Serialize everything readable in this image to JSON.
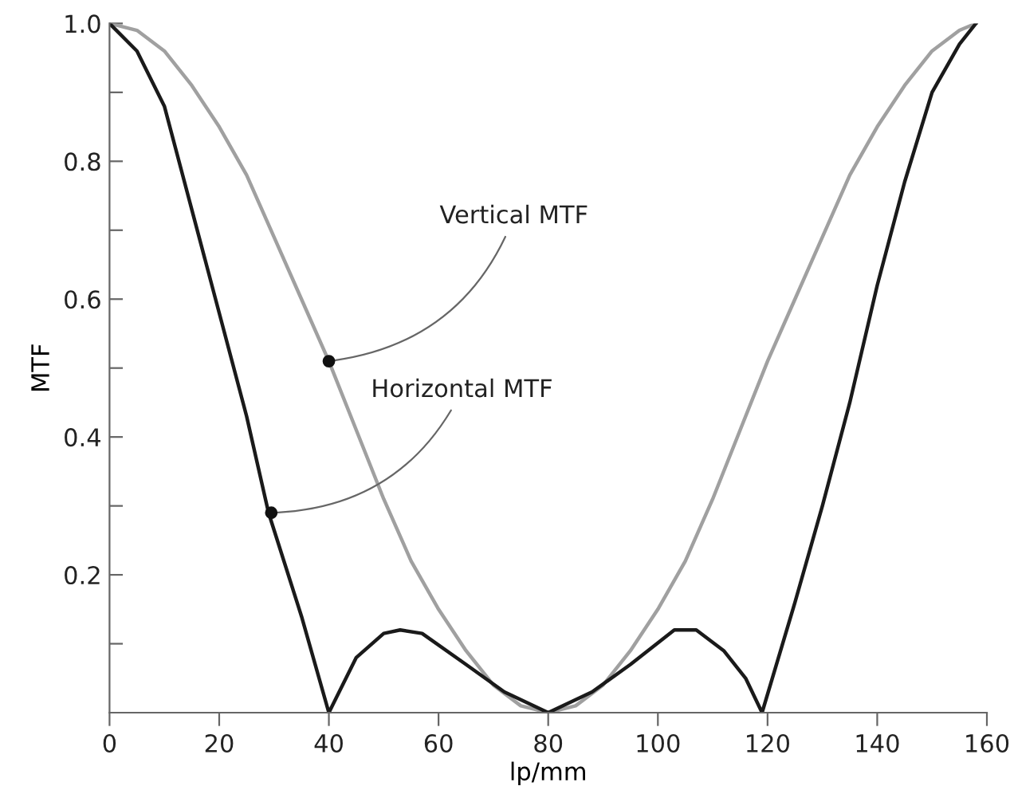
{
  "chart_data": {
    "type": "line",
    "xlabel": "lp/mm",
    "ylabel": "MTF",
    "xlim": [
      0,
      160
    ],
    "ylim": [
      0,
      1.0
    ],
    "xticks": [
      0,
      20,
      40,
      60,
      80,
      100,
      120,
      140,
      160
    ],
    "yticks": [
      {
        "value": 0.1,
        "label": null
      },
      0.2,
      {
        "value": 0.3,
        "label": null
      },
      0.4,
      {
        "value": 0.5,
        "label": null
      },
      0.6,
      {
        "value": 0.7,
        "label": null
      },
      0.8,
      {
        "value": 0.9,
        "label": null
      },
      {
        "value": 1.0,
        "label": "1.0"
      }
    ],
    "grid": false,
    "legend": false,
    "series": [
      {
        "color": "#a0a0a0",
        "x": [
          0,
          5,
          10,
          15,
          20,
          25,
          30,
          35,
          40,
          45,
          50,
          55,
          60,
          65,
          70,
          75,
          80,
          85,
          90,
          95,
          100,
          105,
          110,
          115,
          120,
          125,
          130,
          135,
          140,
          145,
          150,
          155,
          158
        ],
        "values": [
          1.0,
          0.99,
          0.96,
          0.91,
          0.85,
          0.78,
          0.69,
          0.6,
          0.51,
          0.41,
          0.31,
          0.22,
          0.15,
          0.09,
          0.04,
          0.01,
          0.0,
          0.01,
          0.04,
          0.09,
          0.15,
          0.22,
          0.31,
          0.41,
          0.51,
          0.6,
          0.69,
          0.78,
          0.85,
          0.91,
          0.96,
          0.99,
          1.0
        ]
      },
      {
        "color": "#1a1a1a",
        "x": [
          0,
          5,
          10,
          15,
          20,
          25,
          29,
          35,
          40,
          45,
          50,
          53,
          57,
          65,
          72,
          80,
          88,
          95,
          103,
          107,
          112,
          116,
          119,
          125,
          130,
          135,
          140,
          145,
          150,
          155,
          158
        ],
        "values": [
          1.0,
          0.96,
          0.88,
          0.73,
          0.58,
          0.43,
          0.29,
          0.14,
          0.0,
          0.08,
          0.115,
          0.12,
          0.115,
          0.07,
          0.03,
          0.0,
          0.03,
          0.07,
          0.12,
          0.12,
          0.09,
          0.05,
          0.0,
          0.16,
          0.3,
          0.45,
          0.62,
          0.77,
          0.9,
          0.97,
          1.0
        ]
      }
    ],
    "annotations": [
      {
        "text": "Vertical MTF",
        "x": 40,
        "y": 0.51
      },
      {
        "text": "Horizontal MTF",
        "x": 29.5,
        "y": 0.29
      }
    ]
  }
}
